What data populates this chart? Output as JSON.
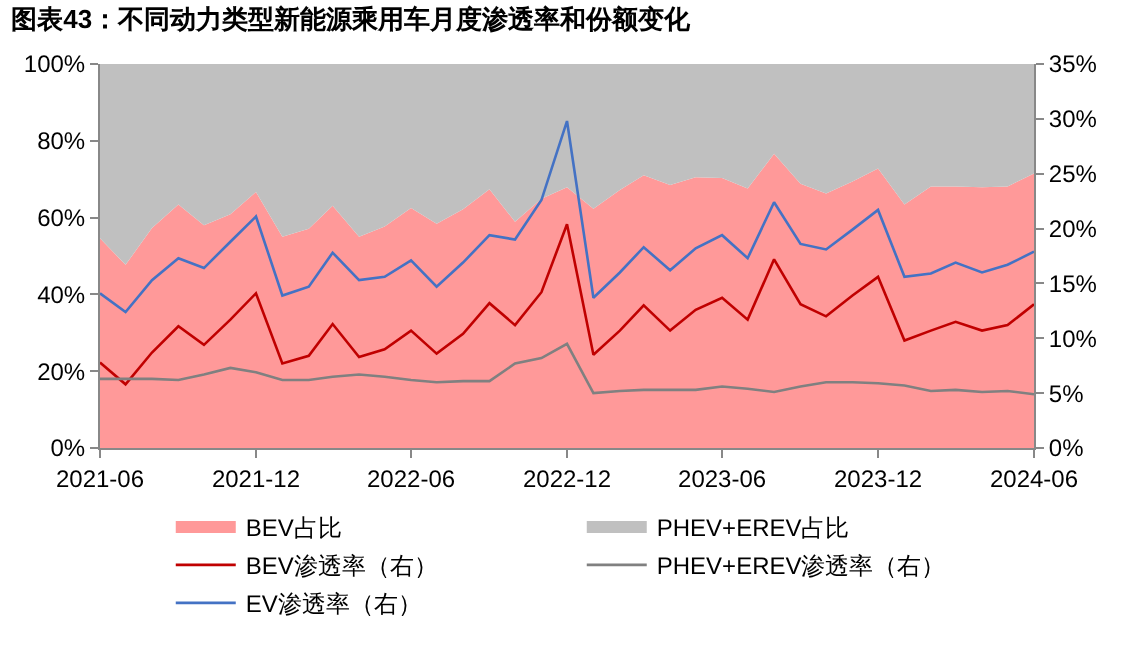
{
  "chart_data": {
    "type": "area",
    "title": "图表43：不同动力类型新能源乘用车月度渗透率和份额变化",
    "stacked": true,
    "x": [
      "2021-06",
      "2021-07",
      "2021-08",
      "2021-09",
      "2021-10",
      "2021-11",
      "2021-12",
      "2022-01",
      "2022-02",
      "2022-03",
      "2022-04",
      "2022-05",
      "2022-06",
      "2022-07",
      "2022-08",
      "2022-09",
      "2022-10",
      "2022-11",
      "2022-12",
      "2023-01",
      "2023-02",
      "2023-03",
      "2023-04",
      "2023-05",
      "2023-06",
      "2023-07",
      "2023-08",
      "2023-09",
      "2023-10",
      "2023-11",
      "2023-12",
      "2024-01",
      "2024-02",
      "2024-03",
      "2024-04",
      "2024-05",
      "2024-06"
    ],
    "series": [
      {
        "name": "BEV占比",
        "color": "#ff9999",
        "values": [
          54.6,
          47.7,
          57.3,
          63.4,
          58.0,
          60.9,
          66.7,
          55.0,
          57.1,
          63.1,
          55.0,
          57.7,
          62.5,
          58.4,
          62.2,
          67.4,
          58.9,
          64.9,
          67.9,
          62.3,
          67.2,
          71.0,
          68.5,
          70.5,
          70.3,
          67.6,
          76.6,
          68.8,
          66.3,
          69.4,
          72.8,
          63.4,
          68.1,
          68.1,
          67.9,
          68.1,
          71.5
        ]
      },
      {
        "name": "PHEV+EREV占比",
        "color": "#c0c0c0",
        "values": [
          45.4,
          52.3,
          42.7,
          36.6,
          42.0,
          39.1,
          33.3,
          45.0,
          42.9,
          36.9,
          45.0,
          42.3,
          37.5,
          41.6,
          37.8,
          32.6,
          41.1,
          35.1,
          32.1,
          37.7,
          32.8,
          29.0,
          31.5,
          29.5,
          29.7,
          32.4,
          23.4,
          31.2,
          33.7,
          30.6,
          27.2,
          36.6,
          31.9,
          31.9,
          32.1,
          31.9,
          28.5
        ]
      },
      {
        "name": "BEV渗透率（右）",
        "type": "line",
        "axis": "y2",
        "color": "#c00000",
        "values": [
          7.8,
          5.8,
          8.7,
          11.1,
          9.4,
          11.7,
          14.1,
          7.7,
          8.4,
          11.3,
          8.3,
          9.0,
          10.7,
          8.6,
          10.4,
          13.2,
          11.2,
          14.2,
          20.4,
          8.5,
          10.7,
          13.0,
          10.7,
          12.6,
          13.7,
          11.7,
          17.2,
          13.1,
          12.0,
          13.9,
          15.6,
          9.8,
          10.7,
          11.5,
          10.7,
          11.2,
          13.1
        ]
      },
      {
        "name": "PHEV+EREV渗透率（右）",
        "type": "line",
        "axis": "y2",
        "color": "#808080",
        "values": [
          6.3,
          6.3,
          6.3,
          6.2,
          6.7,
          7.3,
          6.9,
          6.2,
          6.2,
          6.5,
          6.7,
          6.5,
          6.2,
          6.0,
          6.1,
          6.1,
          7.7,
          8.2,
          9.5,
          5.0,
          5.2,
          5.3,
          5.3,
          5.3,
          5.6,
          5.4,
          5.1,
          5.6,
          6.0,
          6.0,
          5.9,
          5.7,
          5.2,
          5.3,
          5.1,
          5.2,
          4.9
        ]
      },
      {
        "name": "EV渗透率（右）",
        "type": "line",
        "axis": "y2",
        "color": "#4472c4",
        "values": [
          14.1,
          12.4,
          15.3,
          17.3,
          16.4,
          18.8,
          21.1,
          13.9,
          14.7,
          17.8,
          15.3,
          15.6,
          17.1,
          14.7,
          16.9,
          19.4,
          19.0,
          22.6,
          29.8,
          13.7,
          16.0,
          18.3,
          16.2,
          18.2,
          19.4,
          17.3,
          22.4,
          18.6,
          18.1,
          19.9,
          21.7,
          15.6,
          15.9,
          16.9,
          16.0,
          16.7,
          17.9
        ]
      }
    ],
    "xlim": [
      "2021-06",
      "2024-06"
    ],
    "xticks": [
      "2021-06",
      "2021-12",
      "2022-06",
      "2022-12",
      "2023-06",
      "2023-12",
      "2024-06"
    ],
    "ylim": [
      0,
      100
    ],
    "yticks": [
      {
        "value": 0,
        "label": "0%"
      },
      {
        "value": 20,
        "label": "20%"
      },
      {
        "value": 40,
        "label": "40%"
      },
      {
        "value": 60,
        "label": "60%"
      },
      {
        "value": 80,
        "label": "80%"
      },
      {
        "value": 100,
        "label": "100%"
      }
    ],
    "y2lim": [
      0,
      35
    ],
    "y2ticks": [
      {
        "value": 0,
        "label": "0%"
      },
      {
        "value": 5,
        "label": "5%"
      },
      {
        "value": 10,
        "label": "10%"
      },
      {
        "value": 15,
        "label": "15%"
      },
      {
        "value": 20,
        "label": "20%"
      },
      {
        "value": 25,
        "label": "25%"
      },
      {
        "value": 30,
        "label": "30%"
      },
      {
        "value": 35,
        "label": "35%"
      }
    ],
    "legend": "bottom",
    "marker": "none",
    "line_style": "solid"
  }
}
